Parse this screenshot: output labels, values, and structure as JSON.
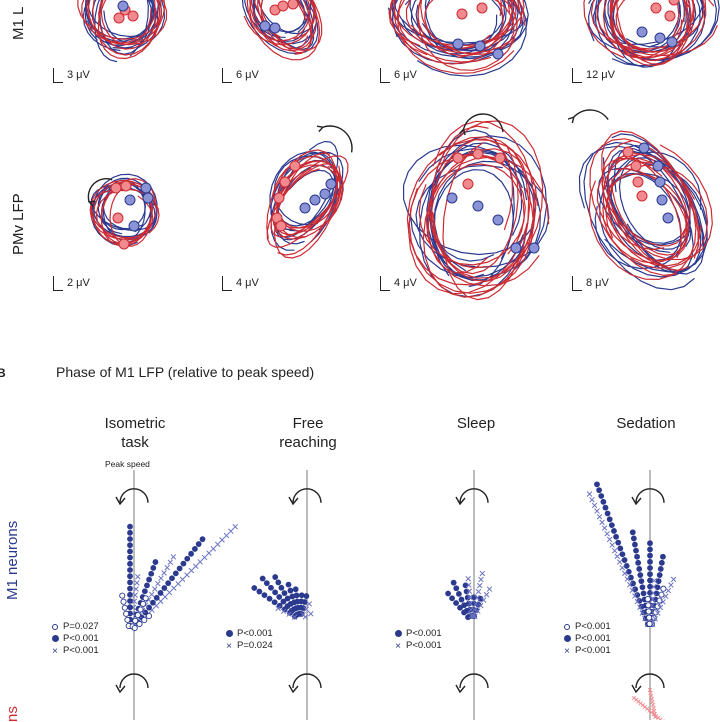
{
  "colors": {
    "blue": "#2b3a8f",
    "red": "#cc2b33",
    "light_blue": "#8a93d6",
    "light_red": "#f08a8e",
    "arrow": "#222222"
  },
  "panel_a": {
    "row1_label": "M1 L",
    "row2_label": "PMv LFP",
    "row1_scales": [
      "3 μV",
      "6 μV",
      "6 μV",
      "12 μV"
    ],
    "row2_scales": [
      "2 μV",
      "4 μV",
      "4 μV",
      "8 μV"
    ]
  },
  "panel_b": {
    "letter": "B",
    "title": "Phase of M1 LFP (relative to peak speed)",
    "columns": [
      {
        "line1": "Isometric",
        "line2": "task"
      },
      {
        "line1": "Free",
        "line2": "reaching"
      },
      {
        "line1": "",
        "line2": "Sleep"
      },
      {
        "line1": "",
        "line2": "Sedation"
      }
    ],
    "peak_speed_label": "Peak speed",
    "row1_label": "M1 neurons",
    "row2_label": "ns",
    "legends": [
      [
        {
          "marker": "open-circle",
          "text": "P=0.027"
        },
        {
          "marker": "filled-circle",
          "text": "P<0.001"
        },
        {
          "marker": "cross",
          "text": "P<0.001"
        }
      ],
      [
        {
          "marker": "filled-circle",
          "text": "P<0.001"
        },
        {
          "marker": "cross",
          "text": "P=0.024"
        }
      ],
      [
        {
          "marker": "filled-circle",
          "text": "P<0.001"
        },
        {
          "marker": "cross",
          "text": "P<0.001"
        }
      ],
      [
        {
          "marker": "open-circle",
          "text": "P<0.001"
        },
        {
          "marker": "filled-circle",
          "text": "P<0.001"
        },
        {
          "marker": "cross",
          "text": "P<0.001"
        }
      ]
    ]
  }
}
